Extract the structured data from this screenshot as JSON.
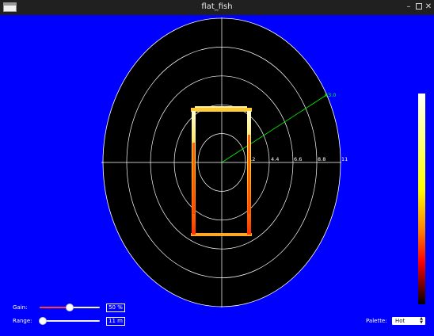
{
  "window": {
    "title": "flat_fish"
  },
  "sonar": {
    "ring_labels": [
      "2.2",
      "4.4",
      "6.6",
      "8.8",
      "11"
    ],
    "beam_angle_label": "63.0",
    "beam_color": "#00ff00"
  },
  "controls": {
    "gain": {
      "label": "Gain:",
      "value": "50 %",
      "level": 0.5
    },
    "range": {
      "label": "Range:",
      "value": "11 m",
      "level": 0.05
    },
    "palette": {
      "label": "Palette:",
      "value": "Hot",
      "icon": "up-down-arrows-icon"
    }
  },
  "colors": {
    "background": "#0000ff",
    "sonar_disc": "#000000",
    "grid": "#ffffff",
    "slider_fill": "#ff4040"
  }
}
